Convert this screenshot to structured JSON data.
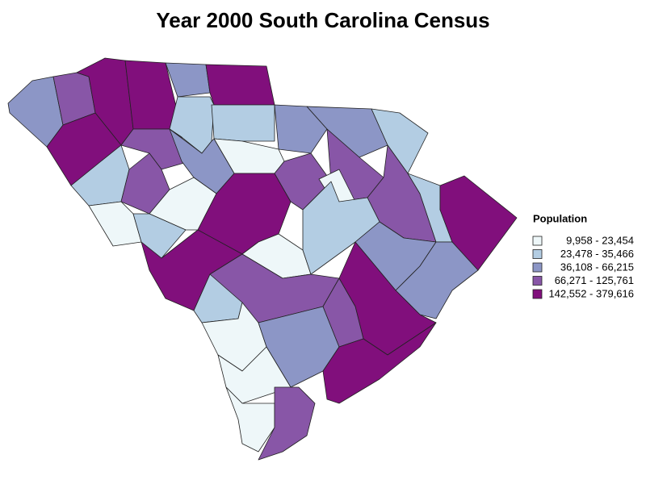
{
  "chart_data": {
    "type": "map",
    "title": "Year 2000 South Carolina Census",
    "legend": {
      "title": "Population",
      "items": [
        {
          "label": "9,958 - 23,454",
          "color": "#eef7f9"
        },
        {
          "label": "23,478 - 35,466",
          "color": "#b3cde3"
        },
        {
          "label": "36,108 - 66,215",
          "color": "#8c96c6"
        },
        {
          "label": "66,271 - 125,761",
          "color": "#8856a7"
        },
        {
          "label": "142,552 - 379,616",
          "color": "#810f7c"
        }
      ]
    }
  }
}
